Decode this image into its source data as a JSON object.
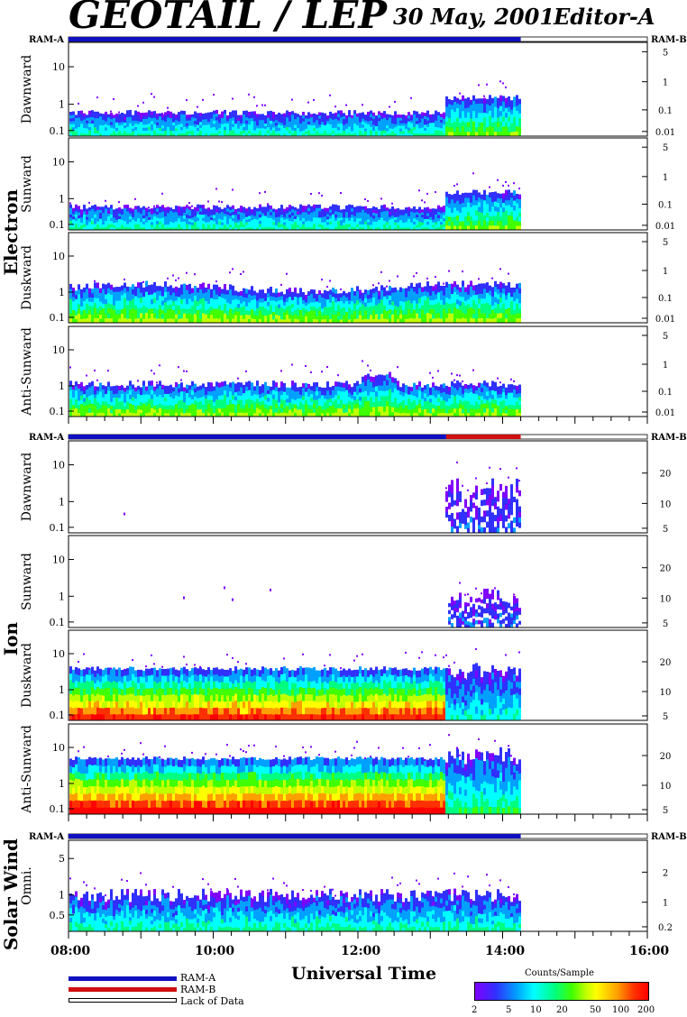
{
  "header": {
    "title": "GEOTAIL / LEP",
    "date": "30 May, 2001",
    "editor": "Editor-A"
  },
  "ram_a_label": "RAM-A",
  "ram_b_label": "RAM-B",
  "groups": {
    "electron": "Electron",
    "ion": "Ion",
    "solar_wind": "Solar Wind"
  },
  "x_axis": {
    "label": "Universal Time",
    "ticks": [
      "08:00",
      "10:00",
      "12:00",
      "14:00",
      "16:00"
    ]
  },
  "legend": {
    "ram_a": "RAM-A",
    "ram_b": "RAM-B",
    "lack": "Lack of Data",
    "colorbar_title": "Counts/Sample",
    "colorbar_ticks": [
      "2",
      "5",
      "10",
      "20",
      "50",
      "100",
      "200"
    ]
  },
  "colors": {
    "ram_a": "#1010c0",
    "ram_b": "#d01010"
  },
  "chart_data": {
    "type": "heatmap",
    "x_range_hours": [
      8,
      16
    ],
    "data_end_hour": 14.25,
    "panels": [
      {
        "group": "electron",
        "label": "Dawnward",
        "left_ticks": [
          "10",
          "1",
          "0.1"
        ],
        "right_ticks": [
          "5",
          "1",
          "0.1",
          "0.01"
        ]
      },
      {
        "group": "electron",
        "label": "Sunward",
        "left_ticks": [
          "10",
          "1",
          "0.1"
        ],
        "right_ticks": [
          "5",
          "1",
          "0.1",
          "0.01"
        ]
      },
      {
        "group": "electron",
        "label": "Duskward",
        "left_ticks": [
          "10",
          "1",
          "0.1"
        ],
        "right_ticks": [
          "5",
          "1",
          "0.1",
          "0.01"
        ]
      },
      {
        "group": "electron",
        "label": "Anti-Sunward",
        "left_ticks": [
          "10",
          "1",
          "0.1"
        ],
        "right_ticks": [
          "5",
          "1",
          "0.1",
          "0.01"
        ]
      },
      {
        "group": "ion",
        "label": "Dawnward",
        "left_ticks": [
          "10",
          "1",
          "0.1"
        ],
        "right_ticks": [
          "20",
          "10",
          "5"
        ]
      },
      {
        "group": "ion",
        "label": "Sunward",
        "left_ticks": [
          "10",
          "1",
          "0.1"
        ],
        "right_ticks": [
          "20",
          "10",
          "5"
        ]
      },
      {
        "group": "ion",
        "label": "Duskward",
        "left_ticks": [
          "10",
          "1",
          "0.1"
        ],
        "right_ticks": [
          "20",
          "10",
          "5"
        ]
      },
      {
        "group": "ion",
        "label": "Anti-Sunward",
        "left_ticks": [
          "10",
          "1",
          "0.1"
        ],
        "right_ticks": [
          "20",
          "10",
          "5"
        ]
      },
      {
        "group": "solar_wind",
        "label": "Omni.",
        "left_ticks": [
          "5",
          "1",
          "0.5"
        ],
        "right_ticks": [
          "2",
          "1",
          "0.2"
        ]
      }
    ],
    "ram_bars": [
      {
        "segments": [
          {
            "mode": "RAM-A",
            "from": 8,
            "to": 14.25
          },
          {
            "mode": "none",
            "from": 14.25,
            "to": 16
          }
        ]
      },
      {
        "segments": [
          {
            "mode": "RAM-A",
            "from": 8,
            "to": 13.22
          },
          {
            "mode": "RAM-B",
            "from": 13.22,
            "to": 14.25
          },
          {
            "mode": "none",
            "from": 14.25,
            "to": 16
          }
        ]
      },
      {
        "segments": [
          {
            "mode": "RAM-A",
            "from": 8,
            "to": 14.25
          },
          {
            "mode": "none",
            "from": 14.25,
            "to": 16
          }
        ]
      }
    ]
  }
}
